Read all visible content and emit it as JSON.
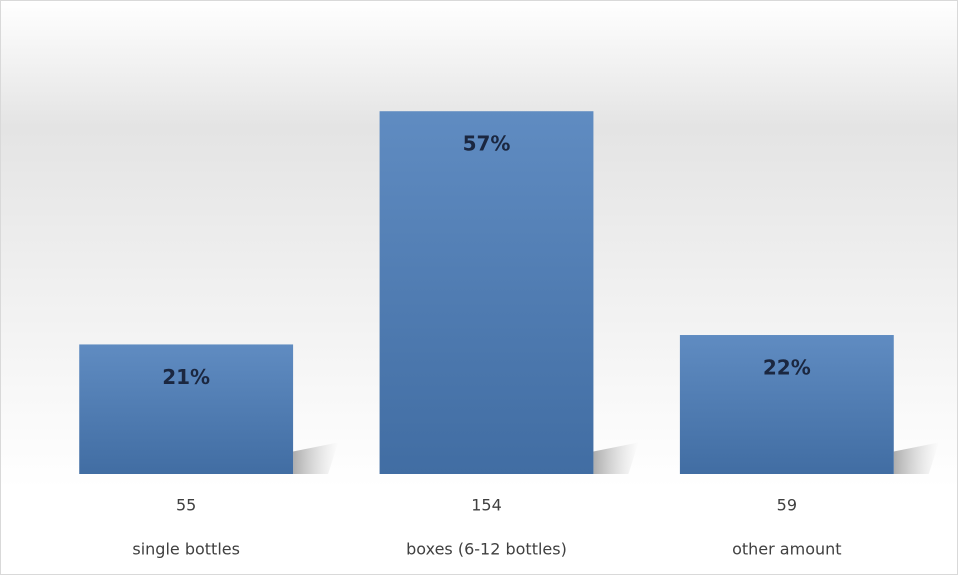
{
  "chart_data": {
    "type": "bar",
    "categories": [
      "single bottles",
      "boxes (6-12 bottles)",
      "other amount"
    ],
    "values": [
      55,
      154,
      59
    ],
    "shares": [
      21,
      57,
      22
    ],
    "share_labels": [
      "21%",
      "57%",
      "22%"
    ],
    "color": "#4a7cb9",
    "ylim": [
      0,
      180
    ]
  }
}
